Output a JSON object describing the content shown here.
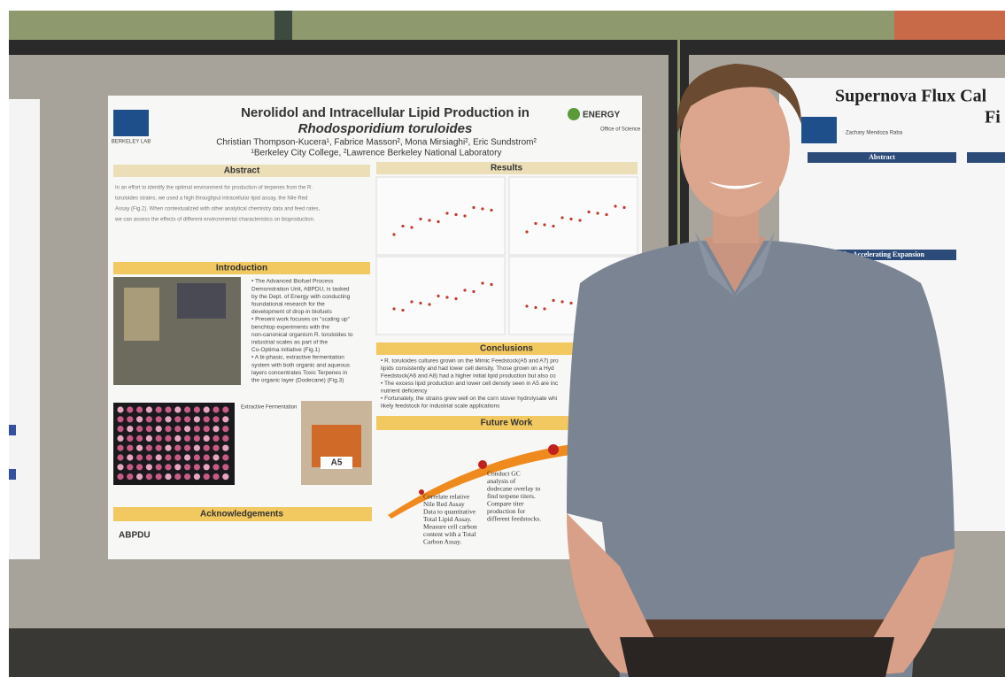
{
  "poster": {
    "title": "Nerolidol and Intracellular Lipid Production in",
    "species": "Rhodosporidium toruloides",
    "authors": "Christian Thompson-Kucera¹, Fabrice Masson², Mona Mirsiaghi², Eric Sundstrom²",
    "affiliations": "¹Berkeley City College, ²Lawrence Berkeley National Laboratory",
    "lab_logo": "BERKELEY LAB",
    "energy_logo": "ENERGY",
    "office": "Office of Science",
    "sections": {
      "abstract": "Abstract",
      "results": "Results",
      "introduction": "Introduction",
      "conclusions": "Conclusions",
      "future_work": "Future Work",
      "acknowledgements": "Acknowledgements"
    },
    "abstract_lines": [
      "In an effort to identify the optimal environment for production of terpenes from the R.",
      "toruloides strains, we used a high throughput intracellular lipid assay, the Nile Red",
      "Assay (Fig.2). When contextualized with other analytical chemistry data and feed rates,",
      "we can assess the effects of different environmental characteristics on bioproduction."
    ],
    "intro_lines": [
      "• The Advanced Biofuel Process",
      "  Demonstration Unit, ABPDU, is tasked",
      "  by the Dept. of Energy with conducting",
      "  foundational research for the",
      "  development of drop-in biofuels",
      "• Present work focuses on \"scaling up\"",
      "  benchtop experiments with the",
      "  non-canonical organism R. toruloides to",
      "  industrial scales as part of the",
      "  Co-Optima initiative (Fig.1)",
      "• A bi-phasic, extractive fermentation",
      "  system with both organic and aqueous",
      "  layers concentrates Toxic Terpenes in",
      "  the organic layer (Dodecane) (Fig.3)"
    ],
    "extractive_label": "Extractive Fermentation",
    "tube_label": "A5",
    "conclusion_lines": [
      "• R. toruloides cultures grown on the Mimic Feedstock(A5 and A7) pro",
      "  lipids consistently and had lower cell density. Those grown on a Hyd",
      "  Feedstock(A6 and A8) had a higher initial lipid production but also co",
      "• The excess lipid production and lower cell density seen in A5 are inc",
      "  nutrient deficiency",
      "• Fortunately, the strains grew well on the corn stover hydrolysate whi",
      "  likely feedstock for industrial scale applications"
    ],
    "future_work": [
      [
        "Correlate relative",
        "Nile Red Assay",
        "Data to quantitative",
        "Total Lipid Assay.",
        "Measure cell carbon",
        "content with a Total",
        "Carbon Assay."
      ],
      [
        "Conduct GC",
        "analysis of",
        "dodecane overlay to",
        "find terpene titers.",
        "Compare titer",
        "production for",
        "different feedstocks."
      ]
    ],
    "ack_logo": "ABPDU"
  },
  "right_poster": {
    "title_line1": "Supernova Flux Cal",
    "title_line2": "Fi",
    "author": "Zachary Mendoza Raba",
    "sections": {
      "abstract": "Abstract",
      "expansion": "The Accelerating Expansion"
    }
  }
}
